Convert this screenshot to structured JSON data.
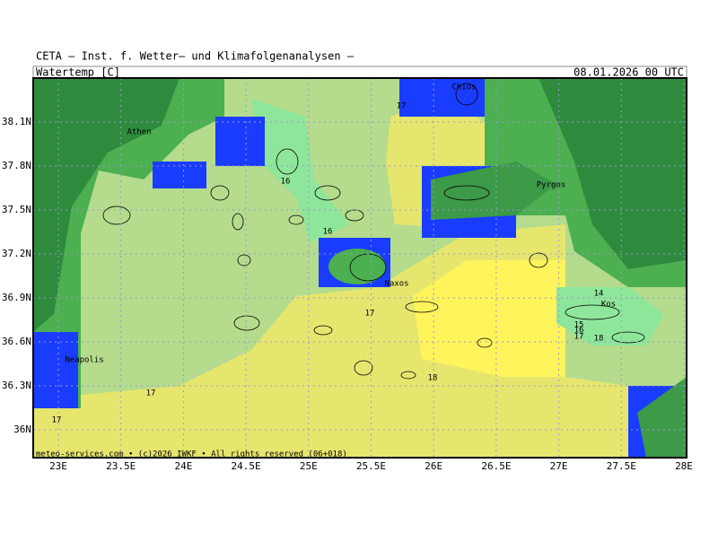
{
  "header": {
    "institute": "CETA — Inst. f. Wetter— und Klimafolgenanalysen —",
    "parameter": "Watertemp [C]",
    "valid": "08.01.2026 00 UTC"
  },
  "map": {
    "lon_labels": [
      "23E",
      "23.5E",
      "24E",
      "24.5E",
      "25E",
      "25.5E",
      "26E",
      "26.5E",
      "27E",
      "27.5E",
      "28E"
    ],
    "lat_labels": [
      "38.1N",
      "37.8N",
      "37.5N",
      "37.2N",
      "36.9N",
      "36.6N",
      "36.3N",
      "36N"
    ],
    "places": [
      "Athen",
      "Chios",
      "Pyrgos",
      "Naxos",
      "Kos",
      "Neapolis"
    ],
    "contour_labels": [
      17,
      16,
      16,
      17,
      14,
      15,
      16,
      17,
      18,
      18,
      17,
      17
    ]
  },
  "footer": "meteo-services.com • (c)2026 IWKF • All rights reserved (06+018)"
}
